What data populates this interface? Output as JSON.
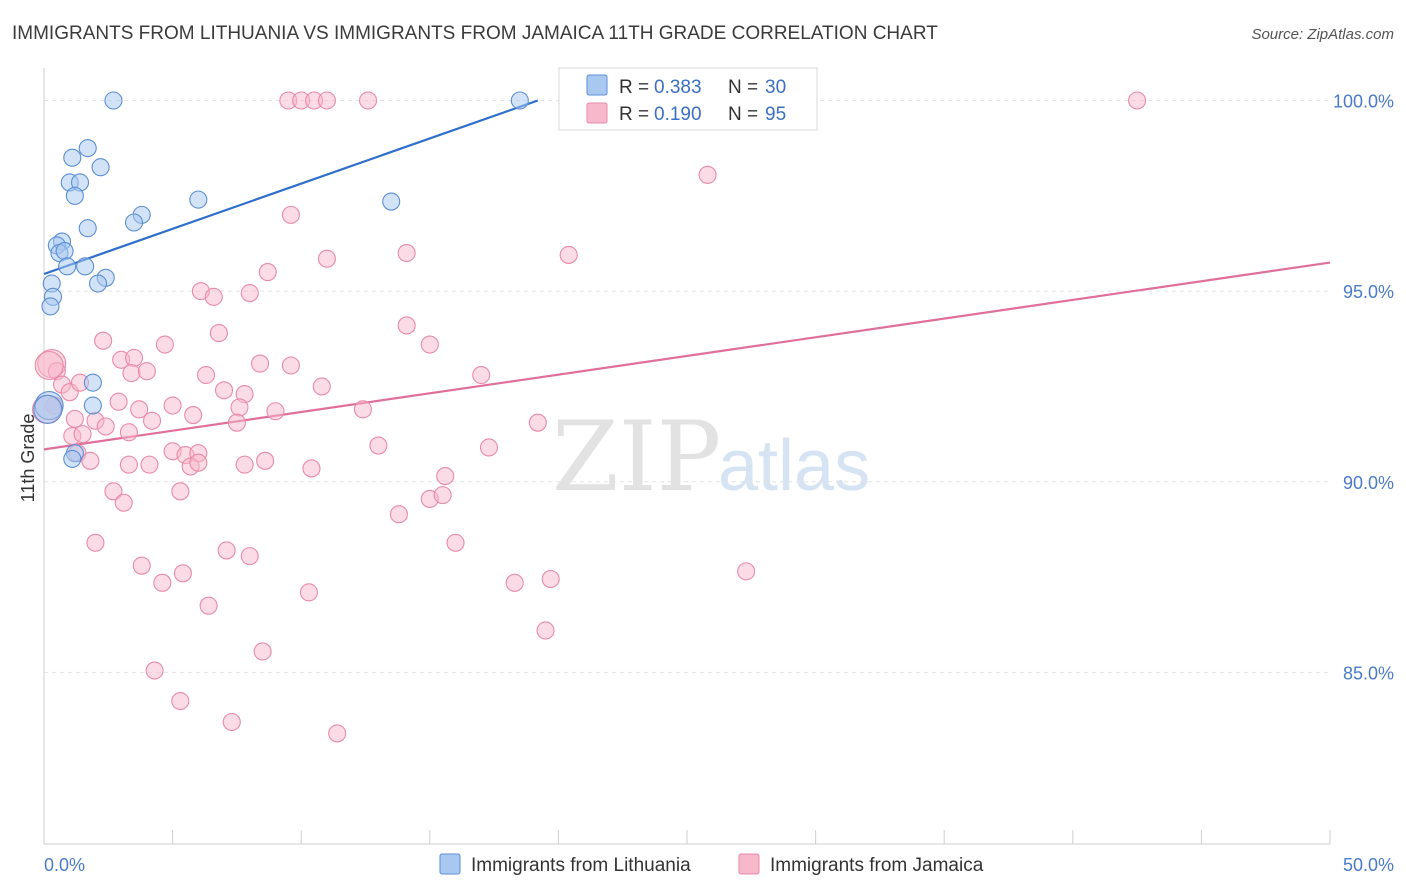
{
  "header": {
    "title": "IMMIGRANTS FROM LITHUANIA VS IMMIGRANTS FROM JAMAICA 11TH GRADE CORRELATION CHART",
    "source": "Source: ZipAtlas.com"
  },
  "watermark": {
    "zip": "ZIP",
    "atlas": "atlas"
  },
  "legend": {
    "r_label": "R =",
    "n_label": "N =",
    "entries": [
      {
        "r": "0.383",
        "n": "30",
        "color": "#a8c8f0"
      },
      {
        "r": "0.190",
        "n": "95",
        "color": "#f7b8cc"
      }
    ]
  },
  "colors": {
    "lithuania_fill": "#a8c8f0",
    "lithuania_stroke": "#5b8fd6",
    "lithuania_line": "#2f6fcc",
    "jamaica_fill": "#f7b8cc",
    "jamaica_stroke": "#e98aa9",
    "jamaica_line": "#e0709a",
    "tick_text": "#4a7bc8",
    "grid": "#e3e3e3"
  },
  "chart_data": {
    "type": "scatter",
    "title": "IMMIGRANTS FROM LITHUANIA VS IMMIGRANTS FROM JAMAICA 11TH GRADE CORRELATION CHART",
    "xlabel": "",
    "ylabel": "11th Grade",
    "xlim": [
      0,
      50
    ],
    "ylim": [
      80.5,
      100.8
    ],
    "x_tick_labels": [
      "0.0%",
      "50.0%"
    ],
    "y_ticks": [
      85,
      90,
      95,
      100
    ],
    "y_tick_labels": [
      "85.0%",
      "90.0%",
      "95.0%",
      "100.0%"
    ],
    "grid": true,
    "legend_position": "top-center",
    "series": [
      {
        "name": "Immigrants from Lithuania",
        "color": "#a8c8f0",
        "trend": [
          [
            0,
            95.45
          ],
          [
            19.2,
            100.0
          ]
        ],
        "points": [
          [
            2.7,
            100.0
          ],
          [
            18.5,
            100.0
          ],
          [
            1.7,
            98.75
          ],
          [
            1.1,
            98.5
          ],
          [
            2.2,
            98.25
          ],
          [
            1.0,
            97.85
          ],
          [
            1.4,
            97.85
          ],
          [
            6.0,
            97.4
          ],
          [
            13.5,
            97.35
          ],
          [
            1.2,
            97.5
          ],
          [
            3.8,
            97.0
          ],
          [
            3.5,
            96.8
          ],
          [
            1.7,
            96.65
          ],
          [
            0.7,
            96.3
          ],
          [
            0.5,
            96.2
          ],
          [
            0.6,
            96.0
          ],
          [
            0.8,
            96.05
          ],
          [
            0.9,
            95.65
          ],
          [
            1.6,
            95.65
          ],
          [
            2.4,
            95.35
          ],
          [
            2.1,
            95.2
          ],
          [
            0.3,
            95.2
          ],
          [
            0.35,
            94.85
          ],
          [
            0.25,
            94.6
          ],
          [
            1.9,
            92.6
          ],
          [
            1.9,
            92.0
          ],
          [
            0.2,
            92.0
          ],
          [
            1.2,
            90.75
          ],
          [
            1.1,
            90.6
          ],
          [
            0.15,
            91.9
          ]
        ]
      },
      {
        "name": "Immigrants from Jamaica",
        "color": "#f7b8cc",
        "trend": [
          [
            0,
            90.85
          ],
          [
            50,
            95.75
          ]
        ],
        "points": [
          [
            9.5,
            100.0
          ],
          [
            10.0,
            100.0
          ],
          [
            10.5,
            100.0
          ],
          [
            11.0,
            100.0
          ],
          [
            12.6,
            100.0
          ],
          [
            20.4,
            100.0
          ],
          [
            42.5,
            100.0
          ],
          [
            25.8,
            98.05
          ],
          [
            9.6,
            97.0
          ],
          [
            11.0,
            95.85
          ],
          [
            14.1,
            96.0
          ],
          [
            20.4,
            95.95
          ],
          [
            8.7,
            95.5
          ],
          [
            6.1,
            95.0
          ],
          [
            6.6,
            94.85
          ],
          [
            8.0,
            94.95
          ],
          [
            14.1,
            94.1
          ],
          [
            2.3,
            93.7
          ],
          [
            4.7,
            93.6
          ],
          [
            6.8,
            93.9
          ],
          [
            15.0,
            93.6
          ],
          [
            0.3,
            93.1
          ],
          [
            3.0,
            93.2
          ],
          [
            3.5,
            93.25
          ],
          [
            8.4,
            93.1
          ],
          [
            9.6,
            93.05
          ],
          [
            0.5,
            92.9
          ],
          [
            3.4,
            92.85
          ],
          [
            4.0,
            92.9
          ],
          [
            6.3,
            92.8
          ],
          [
            17.0,
            92.8
          ],
          [
            0.7,
            92.55
          ],
          [
            1.0,
            92.35
          ],
          [
            7.0,
            92.4
          ],
          [
            7.8,
            92.3
          ],
          [
            10.8,
            92.5
          ],
          [
            2.9,
            92.1
          ],
          [
            3.7,
            91.9
          ],
          [
            5.0,
            92.0
          ],
          [
            7.6,
            91.95
          ],
          [
            9.0,
            91.85
          ],
          [
            12.4,
            91.9
          ],
          [
            0.4,
            92.0
          ],
          [
            1.2,
            91.65
          ],
          [
            2.0,
            91.6
          ],
          [
            2.4,
            91.45
          ],
          [
            4.2,
            91.6
          ],
          [
            5.8,
            91.75
          ],
          [
            7.5,
            91.55
          ],
          [
            19.2,
            91.55
          ],
          [
            1.1,
            91.2
          ],
          [
            1.5,
            91.25
          ],
          [
            3.3,
            91.3
          ],
          [
            13.0,
            90.95
          ],
          [
            17.3,
            90.9
          ],
          [
            1.3,
            90.75
          ],
          [
            5.0,
            90.8
          ],
          [
            5.5,
            90.7
          ],
          [
            6.0,
            90.75
          ],
          [
            1.8,
            90.55
          ],
          [
            3.3,
            90.45
          ],
          [
            4.1,
            90.45
          ],
          [
            5.7,
            90.4
          ],
          [
            6.0,
            90.5
          ],
          [
            7.8,
            90.45
          ],
          [
            8.6,
            90.55
          ],
          [
            10.4,
            90.35
          ],
          [
            15.6,
            90.15
          ],
          [
            2.7,
            89.75
          ],
          [
            5.3,
            89.75
          ],
          [
            15.0,
            89.55
          ],
          [
            15.5,
            89.65
          ],
          [
            3.1,
            89.45
          ],
          [
            13.8,
            89.15
          ],
          [
            2.0,
            88.4
          ],
          [
            7.1,
            88.2
          ],
          [
            8.0,
            88.05
          ],
          [
            16.0,
            88.4
          ],
          [
            3.8,
            87.8
          ],
          [
            5.4,
            87.6
          ],
          [
            4.6,
            87.35
          ],
          [
            18.3,
            87.35
          ],
          [
            19.7,
            87.45
          ],
          [
            27.3,
            87.65
          ],
          [
            10.3,
            87.1
          ],
          [
            6.4,
            86.75
          ],
          [
            19.5,
            86.1
          ],
          [
            8.5,
            85.55
          ],
          [
            4.3,
            85.05
          ],
          [
            5.3,
            84.25
          ],
          [
            7.3,
            83.7
          ],
          [
            11.4,
            83.4
          ],
          [
            0.2,
            93.05
          ],
          [
            1.4,
            92.6
          ],
          [
            0.1,
            91.9
          ]
        ]
      }
    ]
  },
  "bottom_legend": [
    {
      "label": "Immigrants from Lithuania",
      "color": "#a8c8f0"
    },
    {
      "label": "Immigrants from Jamaica",
      "color": "#f7b8cc"
    }
  ]
}
